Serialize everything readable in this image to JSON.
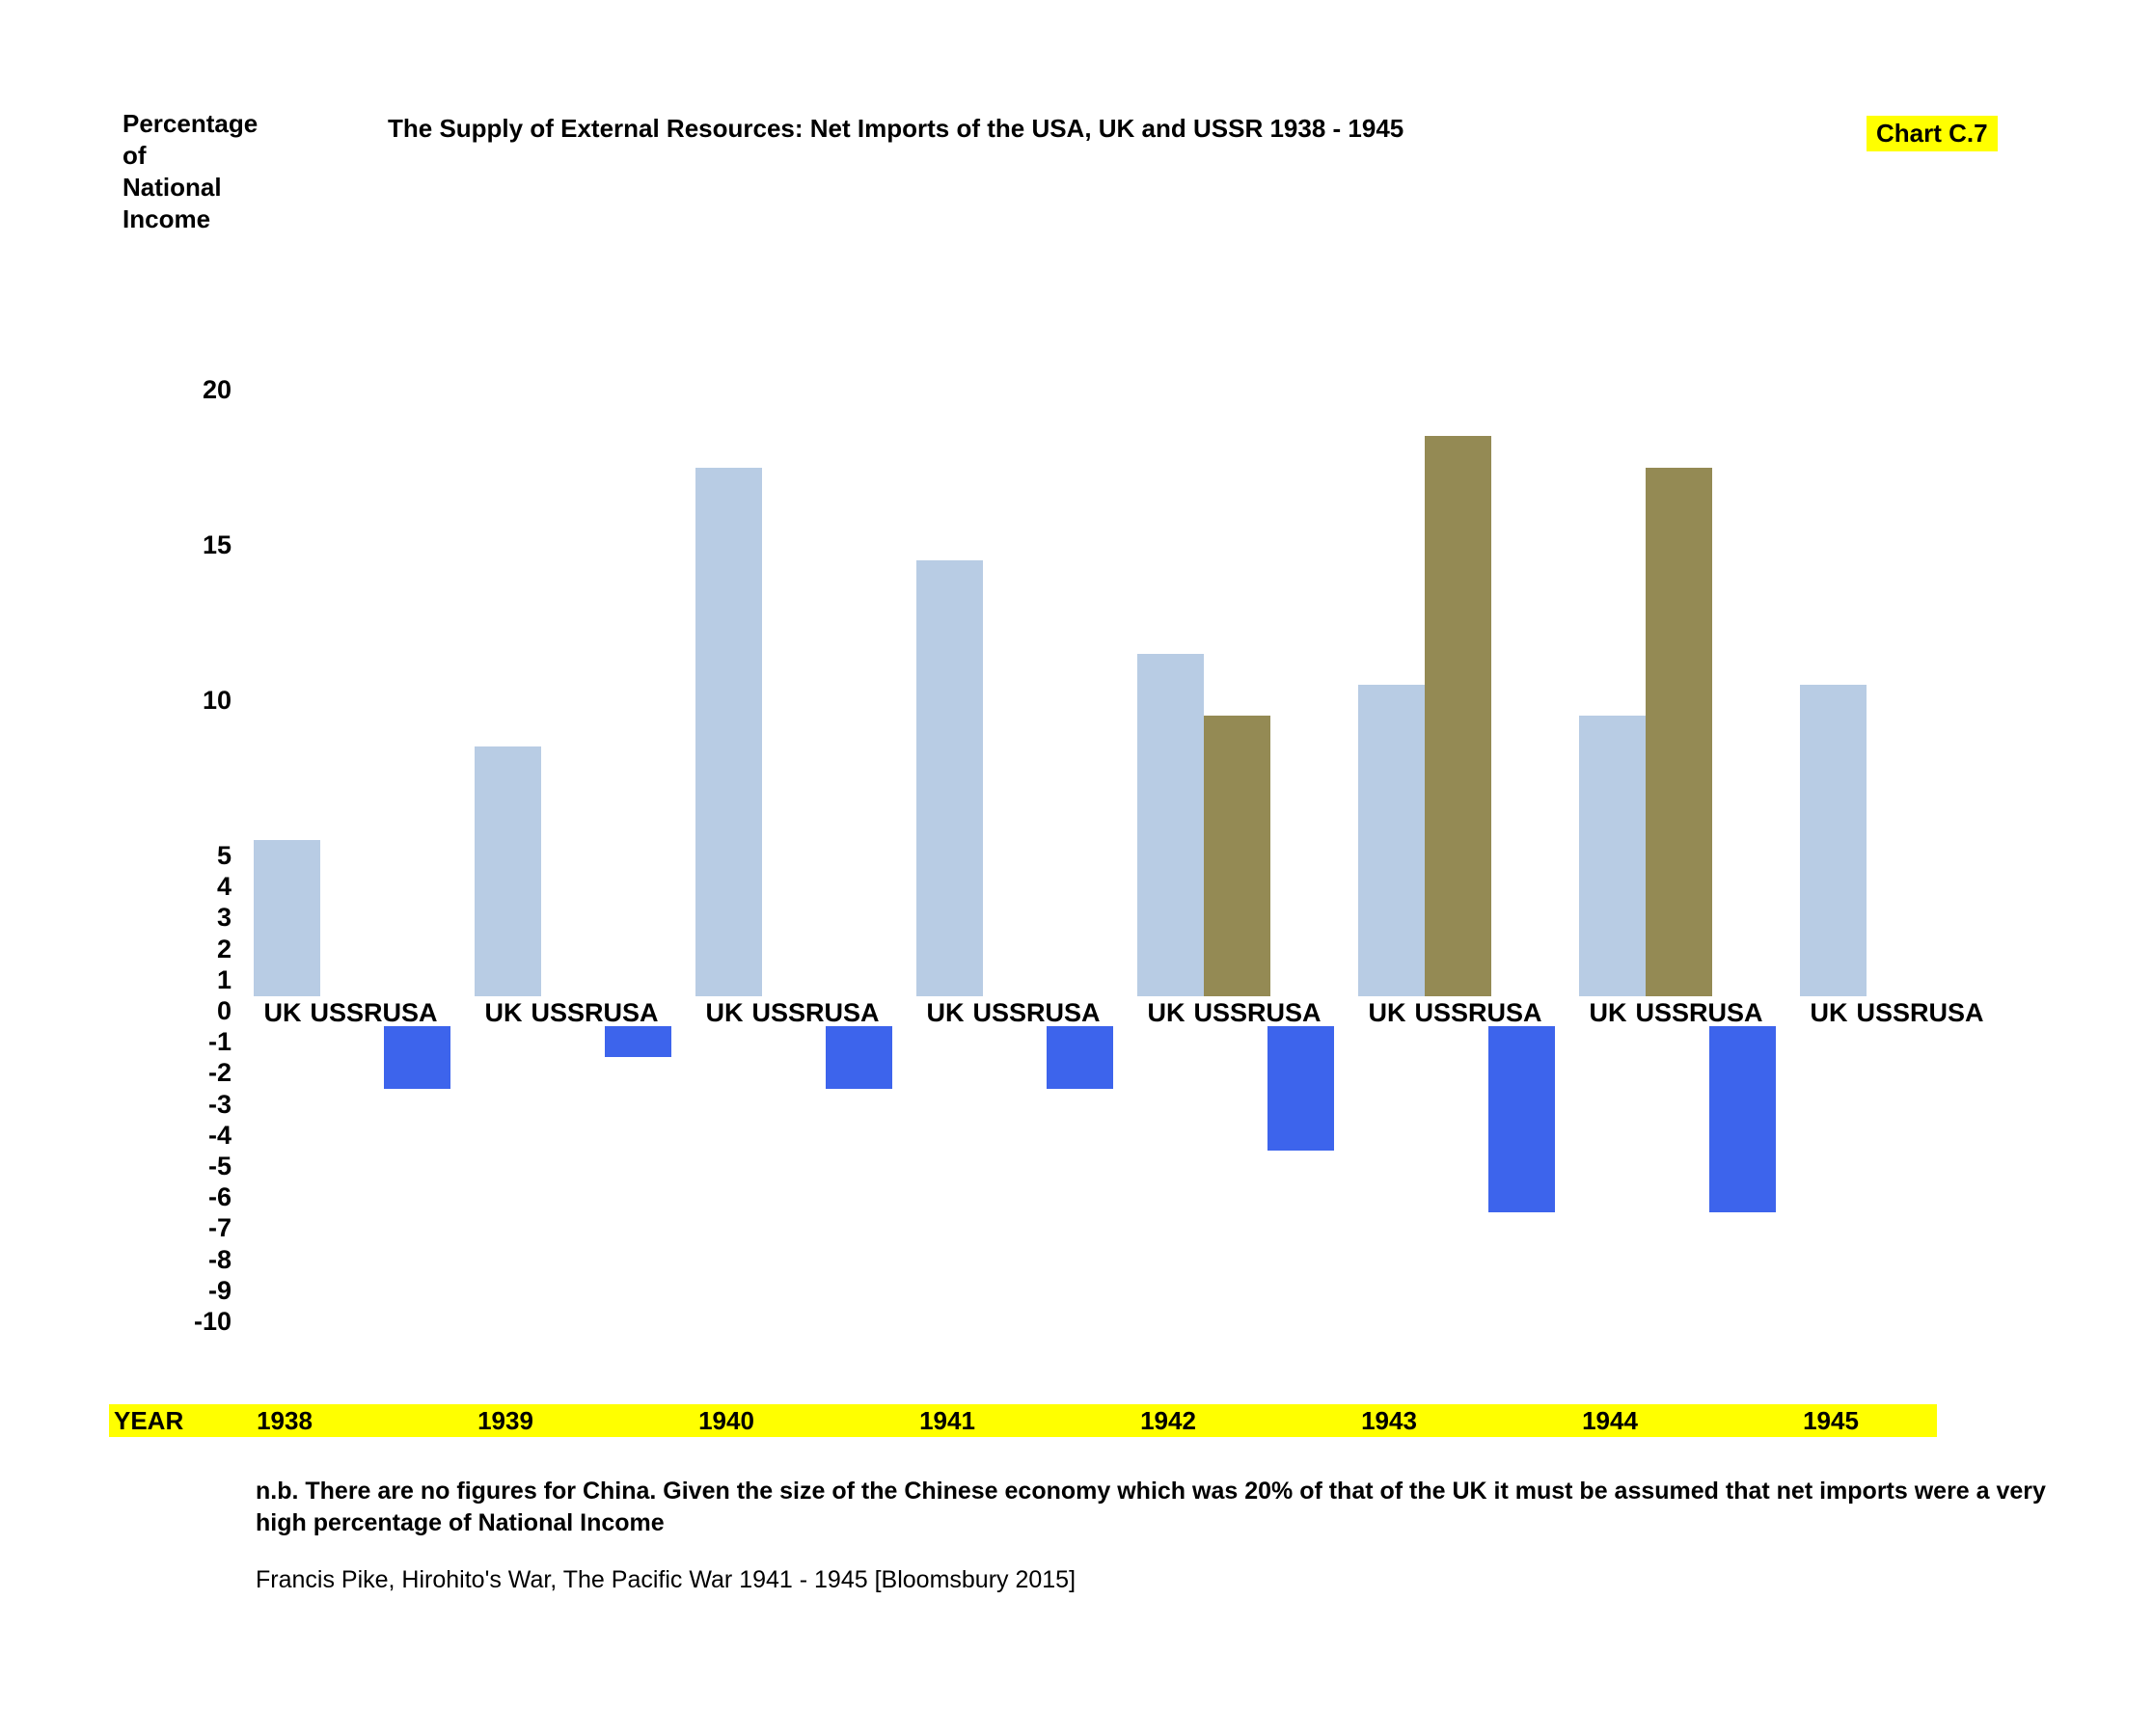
{
  "header": {
    "ylabel_lines": [
      "Percentage",
      "of",
      "National",
      "Income"
    ],
    "title": "The Supply of External Resources: Net Imports of the USA, UK and USSR 1938 -  1945",
    "chart_ref": "Chart C.7"
  },
  "colors": {
    "highlight": "#ffff00",
    "uk_bar": "#b8cce4",
    "ussr_bar": "#948a54",
    "usa_bar": "#3d64ec"
  },
  "chart_data": {
    "type": "bar",
    "title": "The Supply of External Resources: Net Imports of the USA, UK and USSR 1938 -  1945",
    "ylabel": "Percentage of National Income",
    "categories": [
      "1938",
      "1939",
      "1940",
      "1941",
      "1942",
      "1943",
      "1944",
      "1945"
    ],
    "group_labels": [
      "UK",
      "USSR",
      "USA"
    ],
    "series": [
      {
        "name": "UK",
        "color": "#b8cce4",
        "values": [
          5.5,
          8.5,
          17.5,
          14.5,
          11.5,
          10.5,
          9.5,
          10.5
        ]
      },
      {
        "name": "USSR",
        "color": "#948a54",
        "values": [
          null,
          null,
          null,
          null,
          9.5,
          18.5,
          17.5,
          null
        ]
      },
      {
        "name": "USA",
        "color": "#3d64ec",
        "values": [
          -2.5,
          -1.5,
          -2.5,
          -2.5,
          -4.5,
          -6.5,
          -6.5,
          null
        ]
      }
    ],
    "y_ticks": [
      20,
      15,
      10,
      5,
      4,
      3,
      2,
      1,
      0,
      -1,
      -2,
      -3,
      -4,
      -5,
      -6,
      -7,
      -8,
      -9,
      -10
    ],
    "ylim": [
      -10,
      20
    ],
    "grid": false,
    "legend": "none"
  },
  "year_band": {
    "label": "YEAR",
    "years": [
      "1938",
      "1939",
      "1940",
      "1941",
      "1942",
      "1943",
      "1944",
      "1945"
    ]
  },
  "footer": {
    "note_line1": "n.b. There are no figures for China. Given the size of the Chinese economy which was 20% of that of the UK it must be assumed that net imports were a very",
    "note_line2": "high percentage of National Income",
    "source": "Francis Pike, Hirohito's War, The Pacific War 1941 - 1945 [Bloomsbury 2015]"
  }
}
